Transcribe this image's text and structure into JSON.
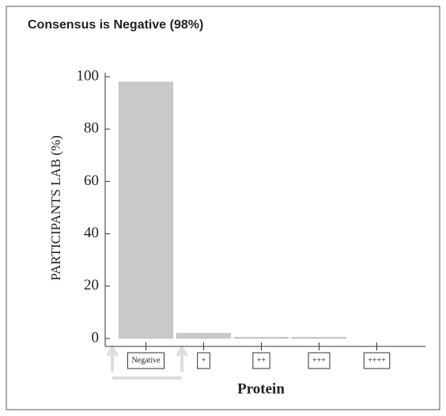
{
  "chart_data": {
    "type": "bar",
    "title": "Consensus is Negative (98%)",
    "x_label": "Protein",
    "y_label": "PARTICIPANTS LAB (%)",
    "categories": [
      "Negative",
      "+",
      "++",
      "+++",
      "++++"
    ],
    "values": [
      98,
      2,
      0.5,
      0.5,
      0
    ],
    "color": "#c9c9c9",
    "ylim": [
      0,
      100
    ],
    "yticks": [
      0,
      20,
      40,
      60,
      80,
      100
    ],
    "grid": false
  }
}
